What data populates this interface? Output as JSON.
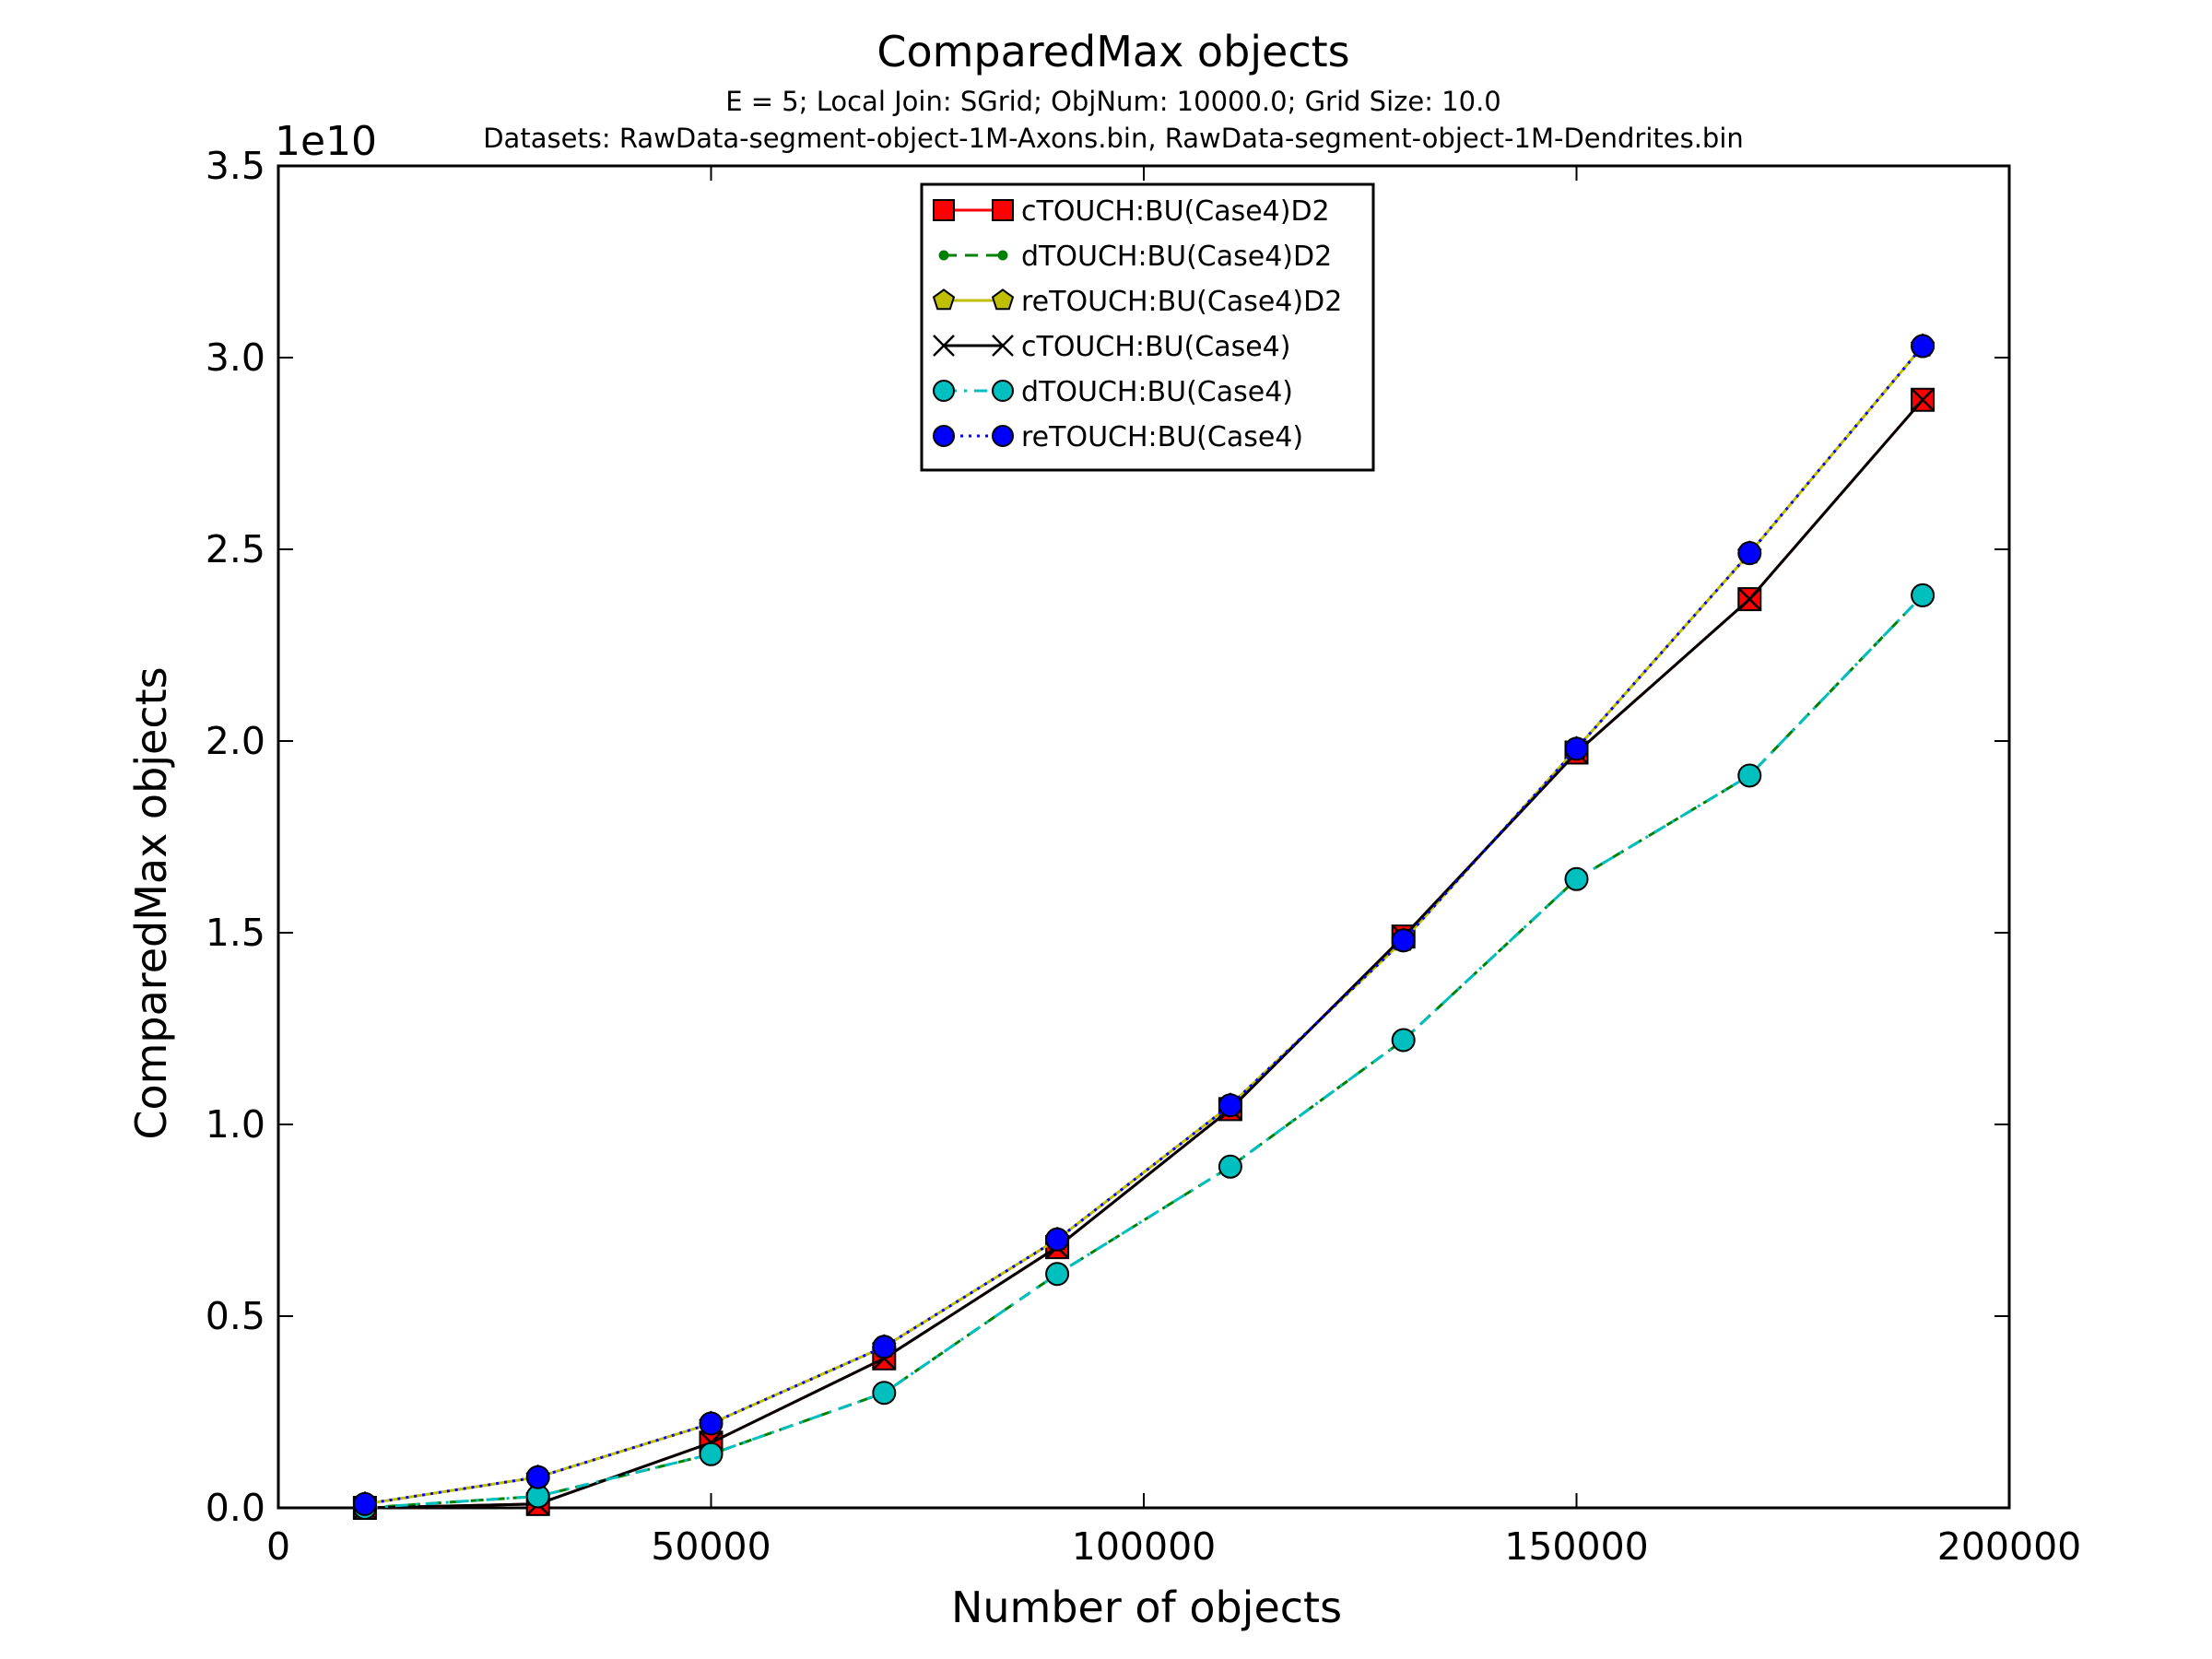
{
  "chart_data": {
    "type": "line",
    "title": "ComparedMax objects",
    "subtitle_lines": [
      "E = 5; Local Join: SGrid; ObjNum: 10000.0; Grid Size: 10.0",
      "Datasets: RawData-segment-object-1M-Axons.bin, RawData-segment-object-1M-Dendrites.bin"
    ],
    "xlabel": "Number of objects",
    "ylabel": "ComparedMax objects",
    "y_offset_label": "1e10",
    "xlim": [
      0,
      200000
    ],
    "ylim": [
      0,
      3.5
    ],
    "y_scale_multiplier": 10000000000.0,
    "xticks": [
      0,
      50000,
      100000,
      150000,
      200000
    ],
    "xtick_labels": [
      "0",
      "50000",
      "100000",
      "150000",
      "200000"
    ],
    "yticks": [
      0.0,
      0.5,
      1.0,
      1.5,
      2.0,
      2.5,
      3.0,
      3.5
    ],
    "ytick_labels": [
      "0.0",
      "0.5",
      "1.0",
      "1.5",
      "2.0",
      "2.5",
      "3.0",
      "3.5"
    ],
    "grid": false,
    "legend_position": "top-center",
    "x": [
      10000,
      30000,
      50000,
      70000,
      90000,
      110000,
      130000,
      150000,
      170000,
      190000
    ],
    "series": [
      {
        "name": "cTOUCH:BU(Case4)D2",
        "values": [
          0.0,
          0.01,
          0.17,
          0.39,
          0.68,
          1.04,
          1.49,
          1.97,
          2.37,
          2.89
        ],
        "color": "#ff0000",
        "line_color": "#ff0000",
        "line_style": "solid",
        "marker": "square"
      },
      {
        "name": "dTOUCH:BU(Case4)D2",
        "values": [
          0.0,
          0.03,
          0.14,
          0.3,
          0.61,
          0.89,
          1.22,
          1.64,
          1.91,
          2.38
        ],
        "color": "#008000",
        "line_color": "#008000",
        "line_style": "dashed",
        "marker": "point"
      },
      {
        "name": "reTOUCH:BU(Case4)D2",
        "values": [
          0.01,
          0.08,
          0.22,
          0.42,
          0.7,
          1.05,
          1.48,
          1.98,
          2.49,
          3.03
        ],
        "color": "#bfbf00",
        "line_color": "#bfbf00",
        "line_style": "solid",
        "marker": "pentagon"
      },
      {
        "name": "cTOUCH:BU(Case4)",
        "values": [
          0.0,
          0.01,
          0.17,
          0.39,
          0.68,
          1.04,
          1.49,
          1.97,
          2.37,
          2.89
        ],
        "color": "#000000",
        "line_color": "#000000",
        "line_style": "solid",
        "marker": "x"
      },
      {
        "name": "dTOUCH:BU(Case4)",
        "values": [
          0.0,
          0.03,
          0.14,
          0.3,
          0.61,
          0.89,
          1.22,
          1.64,
          1.91,
          2.38
        ],
        "color": "#00bfbf",
        "line_color": "#00bfbf",
        "line_style": "dashdot",
        "marker": "octagon"
      },
      {
        "name": "reTOUCH:BU(Case4)",
        "values": [
          0.01,
          0.08,
          0.22,
          0.42,
          0.7,
          1.05,
          1.48,
          1.98,
          2.49,
          3.03
        ],
        "color": "#0000ff",
        "line_color": "#0000ff",
        "line_style": "dotted",
        "marker": "circle"
      }
    ]
  }
}
